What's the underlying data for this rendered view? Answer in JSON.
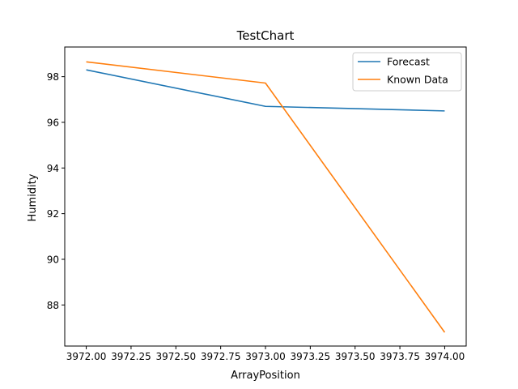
{
  "chart_data": {
    "type": "line",
    "title": "TestChart",
    "xlabel": "ArrayPosition",
    "ylabel": "Humidity",
    "x": [
      3972.0,
      3973.0,
      3974.0
    ],
    "xlim": [
      3971.88,
      3974.12
    ],
    "ylim": [
      86.2,
      99.3
    ],
    "xticks": [
      3972.0,
      3972.25,
      3972.5,
      3972.75,
      3973.0,
      3973.25,
      3973.5,
      3973.75,
      3974.0
    ],
    "xtick_labels": [
      "3972.00",
      "3972.25",
      "3972.50",
      "3972.75",
      "3973.00",
      "3973.25",
      "3973.50",
      "3973.75",
      "3974.00"
    ],
    "yticks": [
      88,
      90,
      92,
      94,
      96,
      98
    ],
    "ytick_labels": [
      "88",
      "90",
      "92",
      "94",
      "96",
      "98"
    ],
    "grid": false,
    "legend_position": "upper-right",
    "series": [
      {
        "name": "Forecast",
        "color": "#1f77b4",
        "values": [
          98.3,
          96.7,
          96.5
        ]
      },
      {
        "name": "Known Data",
        "color": "#ff7f0e",
        "values": [
          98.65,
          97.72,
          86.8
        ]
      }
    ]
  }
}
